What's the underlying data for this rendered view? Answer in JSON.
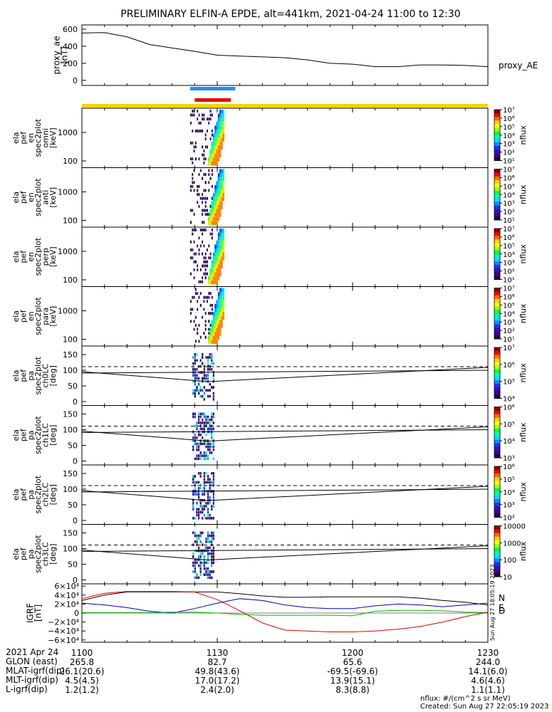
{
  "title": "PRELIMINARY ELFIN-A EPDE, alt=441km, 2021-04-24 11:00 to 12:30",
  "colors": {
    "blue_bar": "#1e8fff",
    "red_bar": "#e01010",
    "yellow_bar": "#f5d400",
    "bx": "#0000cc",
    "by": "#00bb00",
    "bz": "#dd0000",
    "bt": "#000000"
  },
  "chart_data": [
    {
      "type": "line",
      "ylabel": "proxy_ae\n[nT]",
      "yticks": [
        "600",
        "400",
        "200",
        "0"
      ],
      "ylim": [
        -60,
        650
      ],
      "legend": "proxy_AE",
      "x_minutes": [
        0,
        5,
        10,
        15,
        20,
        25,
        30,
        35,
        40,
        45,
        50,
        55,
        60,
        65,
        70,
        75,
        80,
        85,
        90
      ],
      "values": [
        555,
        560,
        510,
        420,
        380,
        340,
        295,
        285,
        275,
        265,
        240,
        200,
        190,
        160,
        160,
        180,
        180,
        175,
        160
      ]
    },
    {
      "type": "heatmap",
      "ylabel": "ela\npef\nen\nspec2plot\nomni\n[keV]",
      "yticks": [
        "1000",
        "100"
      ],
      "colorbar_label": "nflux",
      "colorbar_ticks": [
        "10⁷",
        "10⁶",
        "10⁵",
        "10⁴",
        "10³",
        "10²",
        "10¹"
      ]
    },
    {
      "type": "heatmap",
      "ylabel": "ela\npef\nen\nspec2plot\nanti\n[keV]",
      "yticks": [
        "1000",
        "100"
      ],
      "colorbar_label": "nflux",
      "colorbar_ticks": [
        "10⁷",
        "10⁶",
        "10⁵",
        "10⁴",
        "10³",
        "10²",
        "10¹"
      ]
    },
    {
      "type": "heatmap",
      "ylabel": "ela\npef\nen\nspec2plot\nperp\n[keV]",
      "yticks": [
        "1000",
        "100"
      ],
      "colorbar_label": "nflux",
      "colorbar_ticks": [
        "10⁷",
        "10⁶",
        "10⁵",
        "10⁴",
        "10³",
        "10²",
        "10¹"
      ]
    },
    {
      "type": "heatmap",
      "ylabel": "ela\npef\nen\nspec2plot\npara\n[keV]",
      "yticks": [
        "1000",
        "100"
      ],
      "colorbar_label": "nflux",
      "colorbar_ticks": [
        "10⁷",
        "10⁶",
        "10⁵",
        "10⁴",
        "10³",
        "10²",
        "10¹"
      ]
    },
    {
      "type": "heatmap",
      "ylabel": "ela\npef\npa\nspec2plot\nch0LC\n[deg]",
      "yticks": [
        "150",
        "100",
        "50",
        "0"
      ],
      "colorbar_label": "nflux",
      "colorbar_ticks": [
        "10⁷",
        "10⁶",
        "10⁵",
        "10⁴"
      ]
    },
    {
      "type": "heatmap",
      "ylabel": "ela\npef\npa\nspec2plot\nch1LC\n[deg]",
      "yticks": [
        "150",
        "100",
        "50",
        "0"
      ],
      "colorbar_label": "nflux",
      "colorbar_ticks": [
        "10⁶",
        "10⁵",
        "10⁴",
        "10³"
      ]
    },
    {
      "type": "heatmap",
      "ylabel": "ela\npef\npa\nspec2plot\nch2LC\n[deg]",
      "yticks": [
        "150",
        "100",
        "50",
        "0"
      ],
      "colorbar_label": "nflux",
      "colorbar_ticks": [
        "10⁶",
        "10⁵",
        "10⁴",
        "10³",
        "10²"
      ]
    },
    {
      "type": "heatmap",
      "ylabel": "ela\npef\npa\nspec2plot\nch3LC\n[deg]",
      "yticks": [
        "150",
        "100",
        "50",
        "0"
      ],
      "colorbar_label": "nflux",
      "colorbar_ticks": [
        "10000",
        "1000",
        "100",
        "10"
      ]
    },
    {
      "type": "line",
      "ylabel": "IGRF\n[nT]",
      "yticks": [
        "6×10⁴",
        "4×10⁴",
        "2×10⁴",
        "0",
        "−2×10⁴",
        "−4×10⁴",
        "−6×10⁴"
      ],
      "legend": [
        "N",
        "E",
        "D"
      ],
      "x_minutes": [
        0,
        5,
        10,
        15,
        20,
        25,
        30,
        35,
        40,
        45,
        50,
        55,
        60,
        65,
        70,
        75,
        80,
        85,
        90
      ],
      "series": [
        {
          "values": [
            28000,
            40000,
            47000,
            47000,
            47000,
            47000,
            47000,
            43000,
            38000,
            35000,
            35000,
            36000,
            36000,
            36000,
            36000,
            33000,
            28000,
            24000,
            18000
          ]
        },
        {
          "values": [
            22000,
            18000,
            12000,
            4000,
            0,
            10000,
            22000,
            32000,
            28000,
            18000,
            12000,
            10000,
            10000,
            16000,
            20000,
            18000,
            14000,
            18000,
            22000
          ]
        },
        {
          "values": [
            1000,
            1000,
            1000,
            1000,
            2000,
            2000,
            0,
            -3000,
            -5000,
            -5000,
            -5000,
            -5000,
            -6000,
            4000,
            6000,
            6000,
            5000,
            2000,
            1000
          ]
        },
        {
          "values": [
            32000,
            44000,
            48000,
            48000,
            48000,
            47000,
            30000,
            5000,
            -22000,
            -38000,
            -40000,
            -42000,
            -42000,
            -40000,
            -36000,
            -30000,
            -20000,
            -8000,
            2000
          ]
        }
      ]
    }
  ],
  "xtick_labels": [
    "1100",
    "1130",
    "1200",
    "1230"
  ],
  "footer_rows": [
    {
      "label": "2021 Apr 24",
      "values": [
        "1100",
        "1130",
        "1200",
        "1230"
      ]
    },
    {
      "label": "GLON (east)",
      "values": [
        "265.8",
        "82.7",
        "65.6",
        "244.0"
      ]
    },
    {
      "label": "MLAT-igrf(dip)",
      "values": [
        "26.1(20.6)",
        "49.8(43.6)",
        "-69.5(-69.6)",
        "14.1(6.0)"
      ]
    },
    {
      "label": "MLT-igrf(dip)",
      "values": [
        "4.5(4.5)",
        "17.0(17.2)",
        "13.9(15.1)",
        "4.6(4.6)"
      ]
    },
    {
      "label": "L-igrf(dip)",
      "values": [
        "1.2(1.2)",
        "2.4(2.0)",
        "8.3(8.8)",
        "1.1(1.1)"
      ]
    }
  ],
  "footer_note_1": "nflux: #/(cm^2 s sr MeV)",
  "footer_note_2": "Created: Sun Aug 27 22:05:19 2023",
  "side_stamp": "Sun Aug 27 18:05:19 2023"
}
